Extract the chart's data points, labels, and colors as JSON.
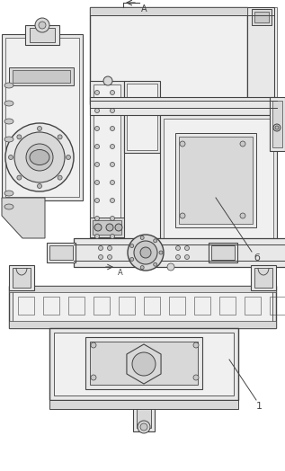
{
  "bg_color": "#ffffff",
  "lc": "#444444",
  "fc1": "#f0f0f0",
  "fc2": "#e8e8e8",
  "fc3": "#d8d8d8",
  "fc4": "#c8c8c8",
  "fc5": "#b8b8b8",
  "label_6": "б",
  "label_1": "1",
  "label_A": "A",
  "fig_width": 3.17,
  "fig_height": 5.24,
  "dpi": 100
}
